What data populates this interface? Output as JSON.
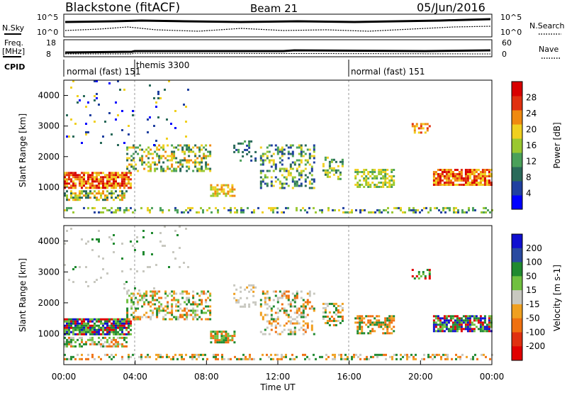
{
  "header": {
    "station": "Blackstone (fitACF)",
    "beam": "Beam 21",
    "date": "05/Jun/2016"
  },
  "noise_panel": {
    "left_label": "N.Sky",
    "right_label": "N.Search",
    "left_ticks": [
      "10^5",
      "10^0"
    ],
    "right_ticks": [
      "10^5",
      "10^0"
    ]
  },
  "freq_panel": {
    "left_label_line1": "Freq.",
    "left_label_line2": "[MHz]",
    "right_label": "Nave",
    "left_ticks": [
      "18",
      "8"
    ],
    "right_ticks": [
      "60",
      "0"
    ]
  },
  "cpid_panel": {
    "label": "CPID",
    "segments": [
      "normal (fast) 151",
      "themis 3300",
      "normal (fast) 151"
    ]
  },
  "time_axis": {
    "label": "Time UT",
    "ticks": [
      "00:00",
      "04:00",
      "08:00",
      "12:00",
      "16:00",
      "20:00",
      "00:00"
    ]
  },
  "chart_data": [
    {
      "type": "heatmap",
      "title": "Power",
      "ylabel": "Slant Range [km]",
      "yticks": [
        "1000",
        "2000",
        "3000",
        "4000"
      ],
      "xlabel": "",
      "colorbar_label": "Power [dB]",
      "colorbar_ticks": [
        "4",
        "8",
        "12",
        "16",
        "20",
        "24",
        "28"
      ],
      "colorscale": [
        "#0000ff",
        "#2040a0",
        "#2a6a5a",
        "#4aa05a",
        "#9ac830",
        "#f0d020",
        "#f08a10",
        "#e03010",
        "#d80000"
      ]
    },
    {
      "type": "heatmap",
      "title": "Velocity",
      "ylabel": "Slant Range [km]",
      "yticks": [
        "1000",
        "2000",
        "3000",
        "4000"
      ],
      "xlabel": "Time UT",
      "colorbar_label": "Velocity [m s-1]",
      "colorbar_ticks": [
        "200",
        "100",
        "50",
        "15",
        "-15",
        "-50",
        "-100",
        "-200"
      ],
      "colorscale": [
        "#1010d0",
        "#2a4aa0",
        "#208a30",
        "#70c040",
        "#c8c8c0",
        "#f0a020",
        "#f07010",
        "#e03010",
        "#e00000"
      ]
    }
  ]
}
